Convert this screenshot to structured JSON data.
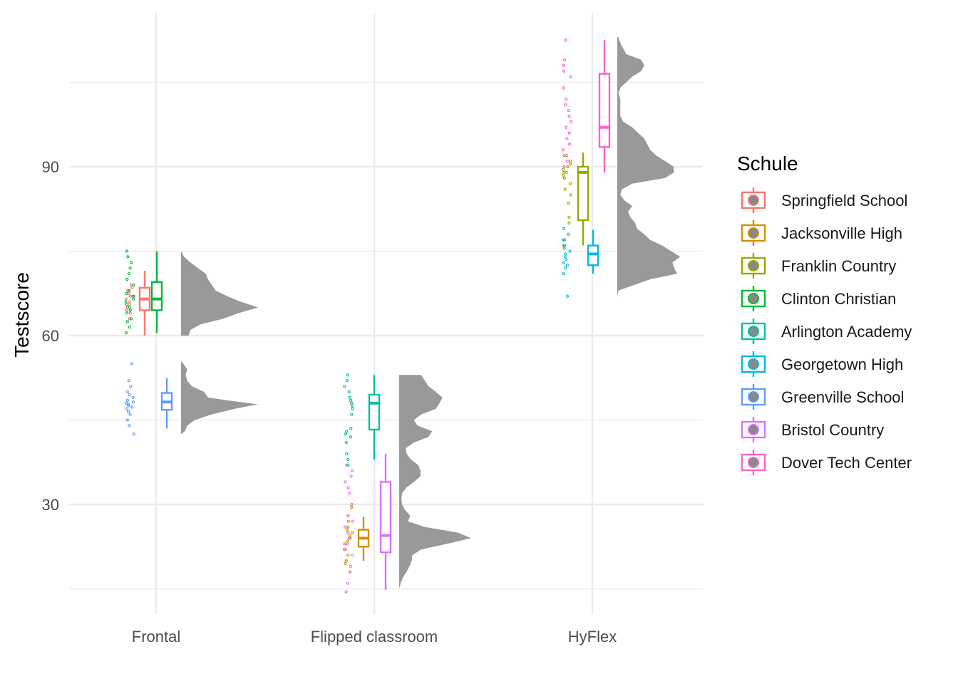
{
  "chart_data": {
    "type": "raincloud",
    "xlabel": "",
    "ylabel": "Testscore",
    "categories": [
      "Frontal",
      "Flipped classroom",
      "HyFlex"
    ],
    "ylim": [
      13,
      117
    ],
    "yticks": [
      30,
      60,
      90
    ],
    "grid": true,
    "legend": {
      "title": "Schule",
      "placement": "right",
      "entries": [
        {
          "name": "Springfield School",
          "color": "#F8766D"
        },
        {
          "name": "Jacksonville High",
          "color": "#D39200"
        },
        {
          "name": "Franklin Country",
          "color": "#93AA00"
        },
        {
          "name": "Clinton Christian",
          "color": "#00BA38"
        },
        {
          "name": "Arlington Academy",
          "color": "#00C19F"
        },
        {
          "name": "Georgetown High",
          "color": "#00B9E3"
        },
        {
          "name": "Greenville School",
          "color": "#619CFF"
        },
        {
          "name": "Bristol Country",
          "color": "#DB72FB"
        },
        {
          "name": "Dover Tech Center",
          "color": "#FF61C3"
        }
      ]
    },
    "boxes": [
      {
        "category": "Frontal",
        "school": "Springfield School",
        "color": "#F8766D",
        "min": 60,
        "q1": 64.5,
        "median": 66.5,
        "q3": 68.5,
        "max": 71.5
      },
      {
        "category": "Frontal",
        "school": "Clinton Christian",
        "color": "#00BA38",
        "min": 60.5,
        "q1": 64.5,
        "median": 66.5,
        "q3": 69.5,
        "max": 75
      },
      {
        "category": "Frontal",
        "school": "Greenville School",
        "color": "#619CFF",
        "min": 43.5,
        "q1": 46.8,
        "median": 48.2,
        "q3": 49.8,
        "max": 52.5
      },
      {
        "category": "Flipped classroom",
        "school": "Jacksonville High",
        "color": "#D39200",
        "min": 20,
        "q1": 22.5,
        "median": 24,
        "q3": 25.5,
        "max": 27.8
      },
      {
        "category": "Flipped classroom",
        "school": "Arlington Academy",
        "color": "#00C19F",
        "min": 38,
        "q1": 43.3,
        "median": 48,
        "q3": 49.5,
        "max": 53
      },
      {
        "category": "Flipped classroom",
        "school": "Bristol Country",
        "color": "#DB72FB",
        "min": 14.8,
        "q1": 21.5,
        "median": 24.5,
        "q3": 34,
        "max": 39
      },
      {
        "category": "HyFlex",
        "school": "Franklin Country",
        "color": "#93AA00",
        "min": 76,
        "q1": 80.5,
        "median": 89,
        "q3": 90,
        "max": 92.5
      },
      {
        "category": "HyFlex",
        "school": "Georgetown High",
        "color": "#00B9E3",
        "min": 71,
        "q1": 72.5,
        "median": 74.5,
        "q3": 76,
        "max": 78.8
      },
      {
        "category": "HyFlex",
        "school": "Dover Tech Center",
        "color": "#FF61C3",
        "min": 89,
        "q1": 93.5,
        "median": 97,
        "q3": 106.5,
        "max": 112.5
      }
    ],
    "densities": [
      {
        "category": "Frontal",
        "group": "upper",
        "fill": "#999999",
        "profile": [
          [
            60,
            0.1
          ],
          [
            61,
            0.12
          ],
          [
            62,
            0.25
          ],
          [
            63,
            0.55
          ],
          [
            64,
            0.75
          ],
          [
            65,
            1.0
          ],
          [
            66,
            0.78
          ],
          [
            67,
            0.6
          ],
          [
            68,
            0.45
          ],
          [
            69,
            0.4
          ],
          [
            70,
            0.35
          ],
          [
            71,
            0.32
          ],
          [
            72,
            0.22
          ],
          [
            73,
            0.12
          ],
          [
            74,
            0.04
          ],
          [
            75,
            0.0
          ]
        ]
      },
      {
        "category": "Frontal",
        "group": "lower",
        "fill": "#999999",
        "profile": [
          [
            42.5,
            0.0
          ],
          [
            43,
            0.05
          ],
          [
            44,
            0.08
          ],
          [
            45,
            0.18
          ],
          [
            46,
            0.4
          ],
          [
            47,
            0.7
          ],
          [
            47.8,
            1.0
          ],
          [
            48.5,
            0.6
          ],
          [
            49,
            0.35
          ],
          [
            50,
            0.3
          ],
          [
            51,
            0.14
          ],
          [
            52,
            0.08
          ],
          [
            53,
            0.06
          ],
          [
            54,
            0.08
          ],
          [
            55,
            0.03
          ],
          [
            55.5,
            0.0
          ]
        ]
      },
      {
        "category": "Flipped classroom",
        "group": "all",
        "fill": "#999999",
        "profile": [
          [
            15,
            0.0
          ],
          [
            16,
            0.02
          ],
          [
            17,
            0.05
          ],
          [
            18,
            0.1
          ],
          [
            19,
            0.14
          ],
          [
            20,
            0.17
          ],
          [
            21,
            0.18
          ],
          [
            22,
            0.3
          ],
          [
            23,
            0.65
          ],
          [
            24,
            0.98
          ],
          [
            25,
            0.8
          ],
          [
            26,
            0.35
          ],
          [
            27,
            0.12
          ],
          [
            28,
            0.15
          ],
          [
            29,
            0.08
          ],
          [
            30,
            0.04
          ],
          [
            31,
            0.03
          ],
          [
            32,
            0.04
          ],
          [
            33,
            0.1
          ],
          [
            34,
            0.2
          ],
          [
            35,
            0.29
          ],
          [
            36,
            0.29
          ],
          [
            37,
            0.26
          ],
          [
            38,
            0.16
          ],
          [
            39,
            0.1
          ],
          [
            40,
            0.09
          ],
          [
            41,
            0.2
          ],
          [
            42,
            0.4
          ],
          [
            43,
            0.45
          ],
          [
            44,
            0.25
          ],
          [
            45,
            0.2
          ],
          [
            46,
            0.3
          ],
          [
            47,
            0.5
          ],
          [
            48,
            0.55
          ],
          [
            49,
            0.59
          ],
          [
            50,
            0.5
          ],
          [
            51,
            0.4
          ],
          [
            52,
            0.35
          ],
          [
            53,
            0.3
          ]
        ]
      },
      {
        "category": "HyFlex",
        "group": "all",
        "fill": "#999999",
        "profile": [
          [
            67,
            0.0
          ],
          [
            68,
            0.02
          ],
          [
            70,
            0.55
          ],
          [
            71,
            1.0
          ],
          [
            72,
            0.95
          ],
          [
            73,
            0.92
          ],
          [
            74,
            1.05
          ],
          [
            75,
            0.9
          ],
          [
            76,
            0.75
          ],
          [
            77,
            0.55
          ],
          [
            78,
            0.45
          ],
          [
            79,
            0.33
          ],
          [
            80,
            0.3
          ],
          [
            81,
            0.22
          ],
          [
            82,
            0.18
          ],
          [
            83,
            0.25
          ],
          [
            84,
            0.12
          ],
          [
            85,
            0.05
          ],
          [
            86,
            0.08
          ],
          [
            87,
            0.25
          ],
          [
            88,
            0.8
          ],
          [
            89,
            0.95
          ],
          [
            90,
            0.94
          ],
          [
            91,
            0.8
          ],
          [
            92,
            0.65
          ],
          [
            93,
            0.55
          ],
          [
            94,
            0.5
          ],
          [
            95,
            0.45
          ],
          [
            96,
            0.35
          ],
          [
            97,
            0.25
          ],
          [
            98,
            0.1
          ],
          [
            99,
            0.05
          ],
          [
            100,
            0.05
          ],
          [
            101,
            0.05
          ],
          [
            102,
            0.05
          ],
          [
            103,
            0.02
          ],
          [
            104,
            0.05
          ],
          [
            105,
            0.15
          ],
          [
            106,
            0.25
          ],
          [
            107,
            0.4
          ],
          [
            108,
            0.45
          ],
          [
            109,
            0.4
          ],
          [
            110,
            0.15
          ],
          [
            111,
            0.1
          ],
          [
            112,
            0.05
          ],
          [
            113,
            0.02
          ]
        ]
      }
    ],
    "points": [
      {
        "category": "Frontal",
        "school": "Springfield School",
        "color": "#F8766D",
        "values": [
          63,
          64,
          64.5,
          65,
          65.5,
          66,
          66.5,
          67,
          67,
          67.5,
          68,
          68.5,
          69
        ]
      },
      {
        "category": "Frontal",
        "school": "Clinton Christian",
        "color": "#00BA38",
        "values": [
          60.5,
          61.5,
          62.5,
          63,
          64,
          64.5,
          65,
          65.5,
          66,
          66.5,
          67,
          67.5,
          68,
          69,
          70,
          71,
          72,
          73,
          74,
          75
        ]
      },
      {
        "category": "Frontal",
        "school": "Greenville School",
        "color": "#619CFF",
        "values": [
          42.5,
          44,
          45,
          46,
          46.5,
          47,
          47.3,
          47.6,
          47.8,
          48,
          48.2,
          48.5,
          49,
          49.5,
          50,
          51,
          52,
          55
        ]
      },
      {
        "category": "Flipped classroom",
        "school": "Jacksonville High",
        "color": "#D39200",
        "values": [
          18,
          19.5,
          20,
          21,
          22,
          23,
          23.5,
          24,
          24.5,
          25,
          25.5,
          26,
          27,
          28,
          29.5
        ]
      },
      {
        "category": "Flipped classroom",
        "school": "Arlington Academy",
        "color": "#00C19F",
        "values": [
          37,
          38,
          39,
          41,
          42,
          42.5,
          43,
          43.5,
          46,
          47,
          47.5,
          48,
          48.5,
          49,
          50,
          51,
          52,
          53
        ]
      },
      {
        "category": "Flipped classroom",
        "school": "Bristol Country",
        "color": "#DB72FB",
        "values": [
          14.5,
          16,
          18,
          19,
          20,
          21,
          22,
          23,
          24,
          25,
          26,
          27,
          28,
          30,
          32,
          33,
          34,
          35,
          36,
          37
        ]
      },
      {
        "category": "HyFlex",
        "school": "Franklin Country",
        "color": "#93AA00",
        "values": [
          76,
          77,
          80,
          81,
          83.5,
          85,
          86,
          87,
          88,
          88.5,
          89,
          89.5,
          90,
          90.5,
          91,
          92
        ]
      },
      {
        "category": "HyFlex",
        "school": "Georgetown High",
        "color": "#00B9E3",
        "values": [
          67,
          71,
          72,
          72.5,
          73,
          73.5,
          74,
          74.5,
          75,
          75.5,
          76,
          77,
          78,
          79
        ]
      },
      {
        "category": "HyFlex",
        "school": "Dover Tech Center",
        "color": "#FF61C3",
        "values": [
          89,
          90,
          91,
          92,
          93,
          94,
          95,
          96,
          97,
          98,
          99,
          100,
          101,
          102,
          104,
          106,
          107,
          108,
          109,
          112.5
        ]
      }
    ]
  }
}
